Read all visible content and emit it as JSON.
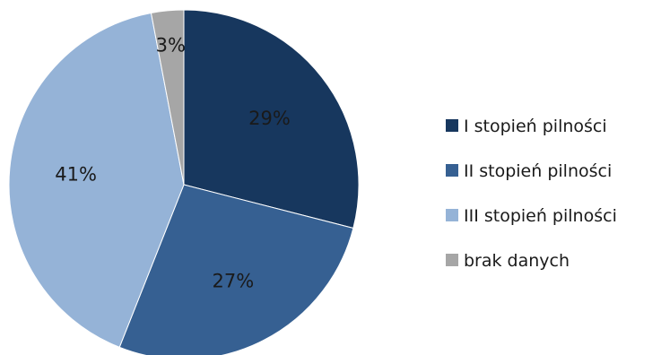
{
  "chart_data": {
    "type": "pie",
    "title": "",
    "legend_position": "right",
    "slices": [
      {
        "label": "I stopień pilności",
        "value": 29,
        "display": "29%",
        "color": "#17375e"
      },
      {
        "label": "II stopień pilności",
        "value": 27,
        "display": "27%",
        "color": "#366092"
      },
      {
        "label": "III stopień pilności",
        "value": 41,
        "display": "41%",
        "color": "#95b3d7"
      },
      {
        "label": "brak danych",
        "value": 3,
        "display": "3%",
        "color": "#a6a6a6"
      }
    ]
  }
}
